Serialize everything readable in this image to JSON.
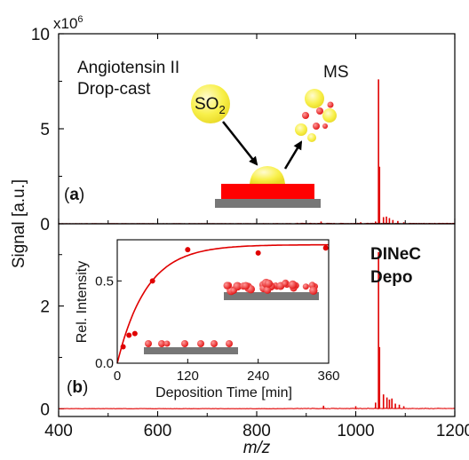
{
  "chart_data": {
    "type": "line",
    "colors": {
      "spectrum": "#e00000",
      "substrate": "#777777",
      "film": "#ff0000",
      "droplet": "#f5ef4a",
      "frame": "#000000"
    },
    "xlabel": "m/z",
    "ylabel": "Signal [a.u.]",
    "xlim": [
      400,
      1200
    ],
    "x_ticks": [
      400,
      600,
      800,
      1000,
      1200
    ],
    "exponent_label": "x10",
    "exponent_power": "6",
    "top_panel": {
      "panel_label_open": "(",
      "panel_label_letter": "a",
      "panel_label_close": ")",
      "annotation_line1": "Angiotensin II",
      "annotation_line2": "Drop-cast",
      "so2_label": "SO",
      "so2_subscript": "2",
      "ms_label": "MS",
      "ylim": [
        0,
        10
      ],
      "y_ticks": [
        0,
        5,
        10
      ],
      "peaks": [
        [
          1046,
          7.6
        ],
        [
          1048,
          3.0
        ],
        [
          1056,
          0.35
        ],
        [
          1062,
          0.38
        ],
        [
          1068,
          0.3
        ],
        [
          1075,
          0.2
        ],
        [
          1085,
          0.15
        ],
        [
          1040,
          0.12
        ],
        [
          1010,
          0.08
        ],
        [
          930,
          0.12
        ],
        [
          890,
          0.05
        ],
        [
          1097,
          0.08
        ]
      ]
    },
    "bottom_panel": {
      "panel_label_open": "(",
      "panel_label_letter": "b",
      "panel_label_close": ")",
      "annotation_line1": "DINeC",
      "annotation_line2": "Depo",
      "ylim": [
        -0.15,
        3.6
      ],
      "y_ticks": [
        0,
        2
      ],
      "peaks": [
        [
          1046,
          3.05
        ],
        [
          1048,
          1.2
        ],
        [
          1056,
          0.28
        ],
        [
          1063,
          0.22
        ],
        [
          1068,
          0.18
        ],
        [
          1073,
          0.2
        ],
        [
          1080,
          0.1
        ],
        [
          1088,
          0.08
        ],
        [
          1040,
          0.12
        ],
        [
          1000,
          0.05
        ],
        [
          935,
          0.06
        ],
        [
          1097,
          0.05
        ]
      ]
    },
    "inset": {
      "xlabel": "Deposition Time [min]",
      "ylabel": "Rel. Intensity",
      "xlim": [
        0,
        360
      ],
      "ylim": [
        0,
        0.75
      ],
      "x_ticks": [
        0,
        120,
        240,
        360
      ],
      "y_ticks": [
        0.0,
        0.5
      ],
      "y_tick_labels": [
        "0.0",
        "0.5"
      ],
      "points": [
        [
          10,
          0.1
        ],
        [
          20,
          0.17
        ],
        [
          30,
          0.18
        ],
        [
          60,
          0.5
        ],
        [
          120,
          0.69
        ],
        [
          240,
          0.67
        ],
        [
          355,
          0.7
        ]
      ],
      "fit_asymptote": 0.72,
      "fit_tau": 50
    }
  }
}
